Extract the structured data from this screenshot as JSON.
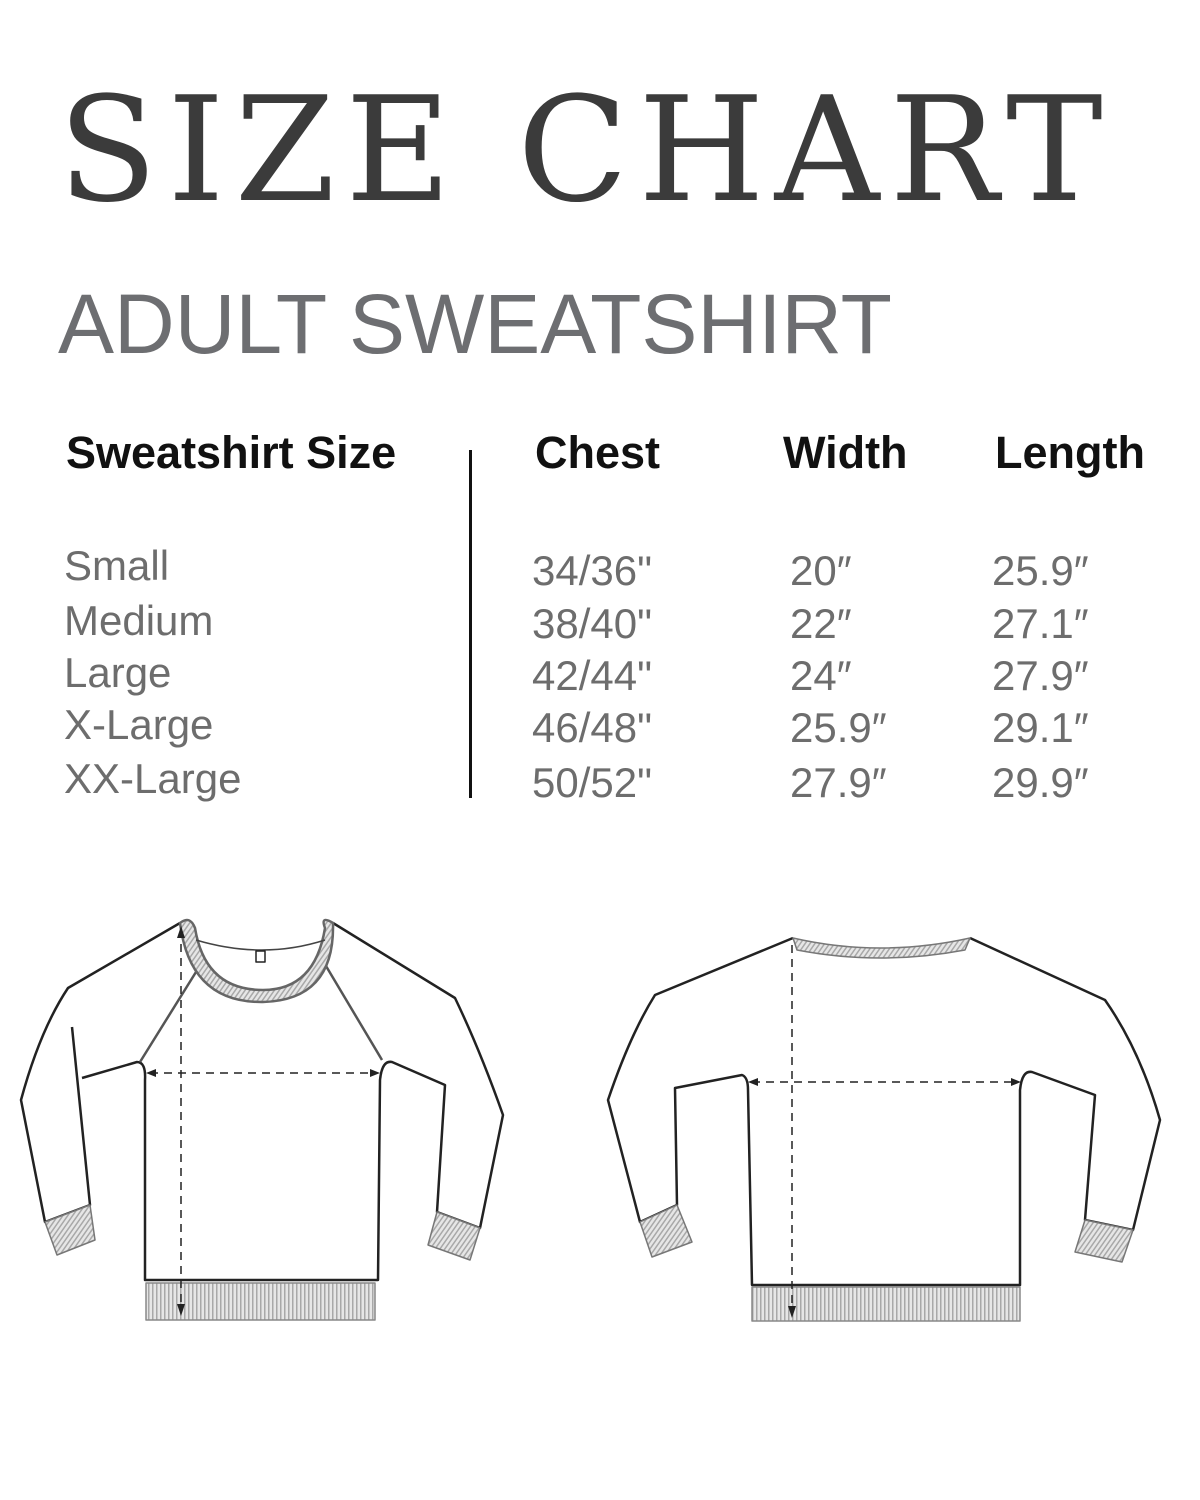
{
  "header": {
    "title": "SIZE CHART",
    "subtitle": "ADULT SWEATSHIRT"
  },
  "table": {
    "columns": [
      "Sweatshirt Size",
      "Chest",
      "Width",
      "Length"
    ],
    "rows": [
      [
        "Small",
        "34/36\"",
        "20″",
        "25.9″"
      ],
      [
        "Medium",
        "38/40\"",
        "22″",
        "27.1″"
      ],
      [
        "Large",
        "42/44\"",
        "24″",
        "27.9″"
      ],
      [
        "X-Large",
        "46/48\"",
        "25.9″",
        "29.1″"
      ],
      [
        "XX-Large",
        "50/52\"",
        "27.9″",
        "29.9″"
      ]
    ]
  },
  "colors": {
    "title": "#3b3b3b",
    "subtitle": "#6d6e71",
    "values": "#6d6d6d",
    "rib": "#bdbdbd"
  },
  "illustrations": [
    "sweatshirt-front",
    "sweatshirt-back"
  ]
}
